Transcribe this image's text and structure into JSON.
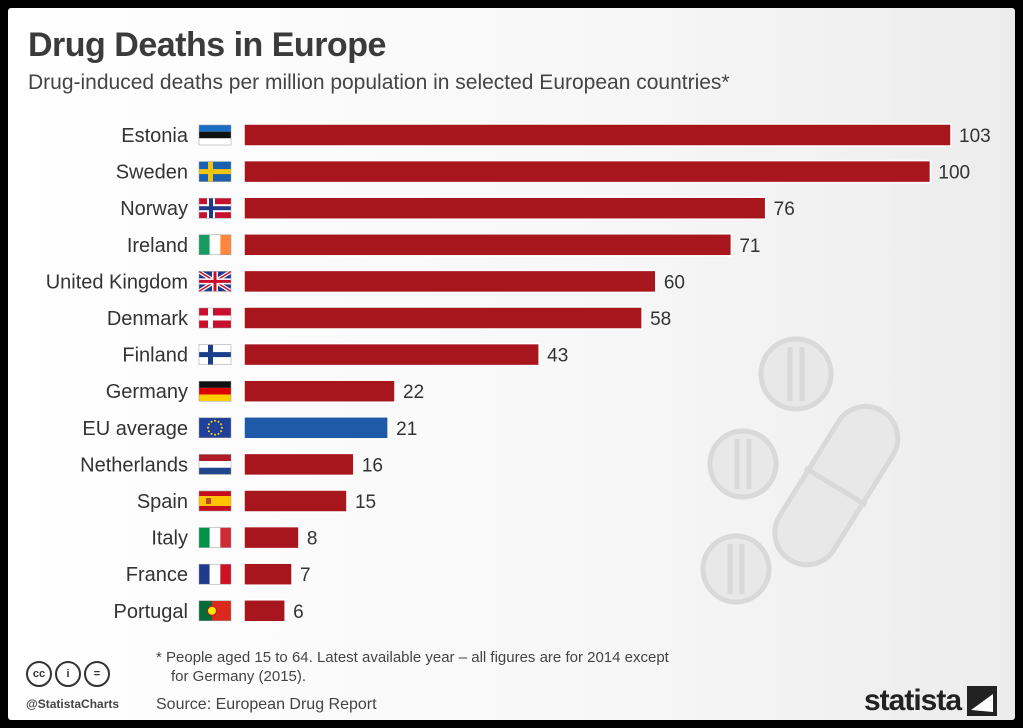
{
  "header": {
    "title": "Drug Deaths in Europe",
    "subtitle": "Drug-induced deaths per million population in selected European countries*"
  },
  "chart_data": {
    "type": "bar",
    "orientation": "horizontal",
    "title": "Drug Deaths in Europe",
    "subtitle": "Drug-induced deaths per million population in selected European countries*",
    "xlim": [
      0,
      103
    ],
    "grid": false,
    "legend": "none",
    "categories": [
      "Estonia",
      "Sweden",
      "Norway",
      "Ireland",
      "United Kingdom",
      "Denmark",
      "Finland",
      "Germany",
      "EU average",
      "Netherlands",
      "Spain",
      "Italy",
      "France",
      "Portugal"
    ],
    "values": [
      103,
      100,
      76,
      71,
      60,
      58,
      43,
      22,
      21,
      16,
      15,
      8,
      7,
      6
    ],
    "flags": [
      "flag-estonia",
      "flag-sweden",
      "flag-norway",
      "flag-ireland",
      "flag-united-kingdom",
      "flag-denmark",
      "flag-finland",
      "flag-germany",
      "flag-eu",
      "flag-netherlands",
      "flag-spain",
      "flag-italy",
      "flag-france",
      "flag-portugal"
    ],
    "colors": {
      "country": "#a8161d",
      "eu_average": "#1e5aa8"
    }
  },
  "footer": {
    "footnote_line1": "* People aged 15 to 64. Latest available year – all figures are for 2014 except",
    "footnote_line2": "for Germany (2015).",
    "source": "Source: European Drug Report",
    "handle": "@StatistaCharts",
    "license_icons": [
      "cc",
      "i",
      "="
    ],
    "logo": "statista"
  }
}
